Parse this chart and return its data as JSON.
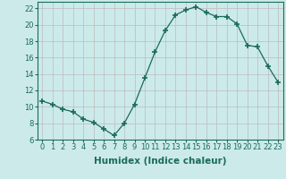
{
  "x": [
    0,
    1,
    2,
    3,
    4,
    5,
    6,
    7,
    8,
    9,
    10,
    11,
    12,
    13,
    14,
    15,
    16,
    17,
    18,
    19,
    20,
    21,
    22,
    23
  ],
  "y": [
    10.7,
    10.3,
    9.7,
    9.4,
    8.5,
    8.1,
    7.3,
    6.5,
    8.0,
    10.3,
    13.5,
    16.7,
    19.3,
    21.2,
    21.8,
    22.2,
    21.5,
    21.0,
    21.0,
    20.1,
    17.5,
    17.3,
    15.0,
    13.0
  ],
  "line_color": "#1a6b5a",
  "marker": "+",
  "marker_size": 4,
  "bg_color": "#cceaea",
  "grid_color": "#bbbbbb",
  "xlabel": "Humidex (Indice chaleur)",
  "xlim": [
    -0.5,
    23.5
  ],
  "ylim": [
    6,
    22.8
  ],
  "yticks": [
    6,
    8,
    10,
    12,
    14,
    16,
    18,
    20,
    22
  ],
  "xticks": [
    0,
    1,
    2,
    3,
    4,
    5,
    6,
    7,
    8,
    9,
    10,
    11,
    12,
    13,
    14,
    15,
    16,
    17,
    18,
    19,
    20,
    21,
    22,
    23
  ],
  "xtick_labels": [
    "0",
    "1",
    "2",
    "3",
    "4",
    "5",
    "6",
    "7",
    "8",
    "9",
    "10",
    "11",
    "12",
    "13",
    "14",
    "15",
    "16",
    "17",
    "18",
    "19",
    "20",
    "21",
    "22",
    "23"
  ],
  "tick_fontsize": 6,
  "label_fontsize": 7.5
}
